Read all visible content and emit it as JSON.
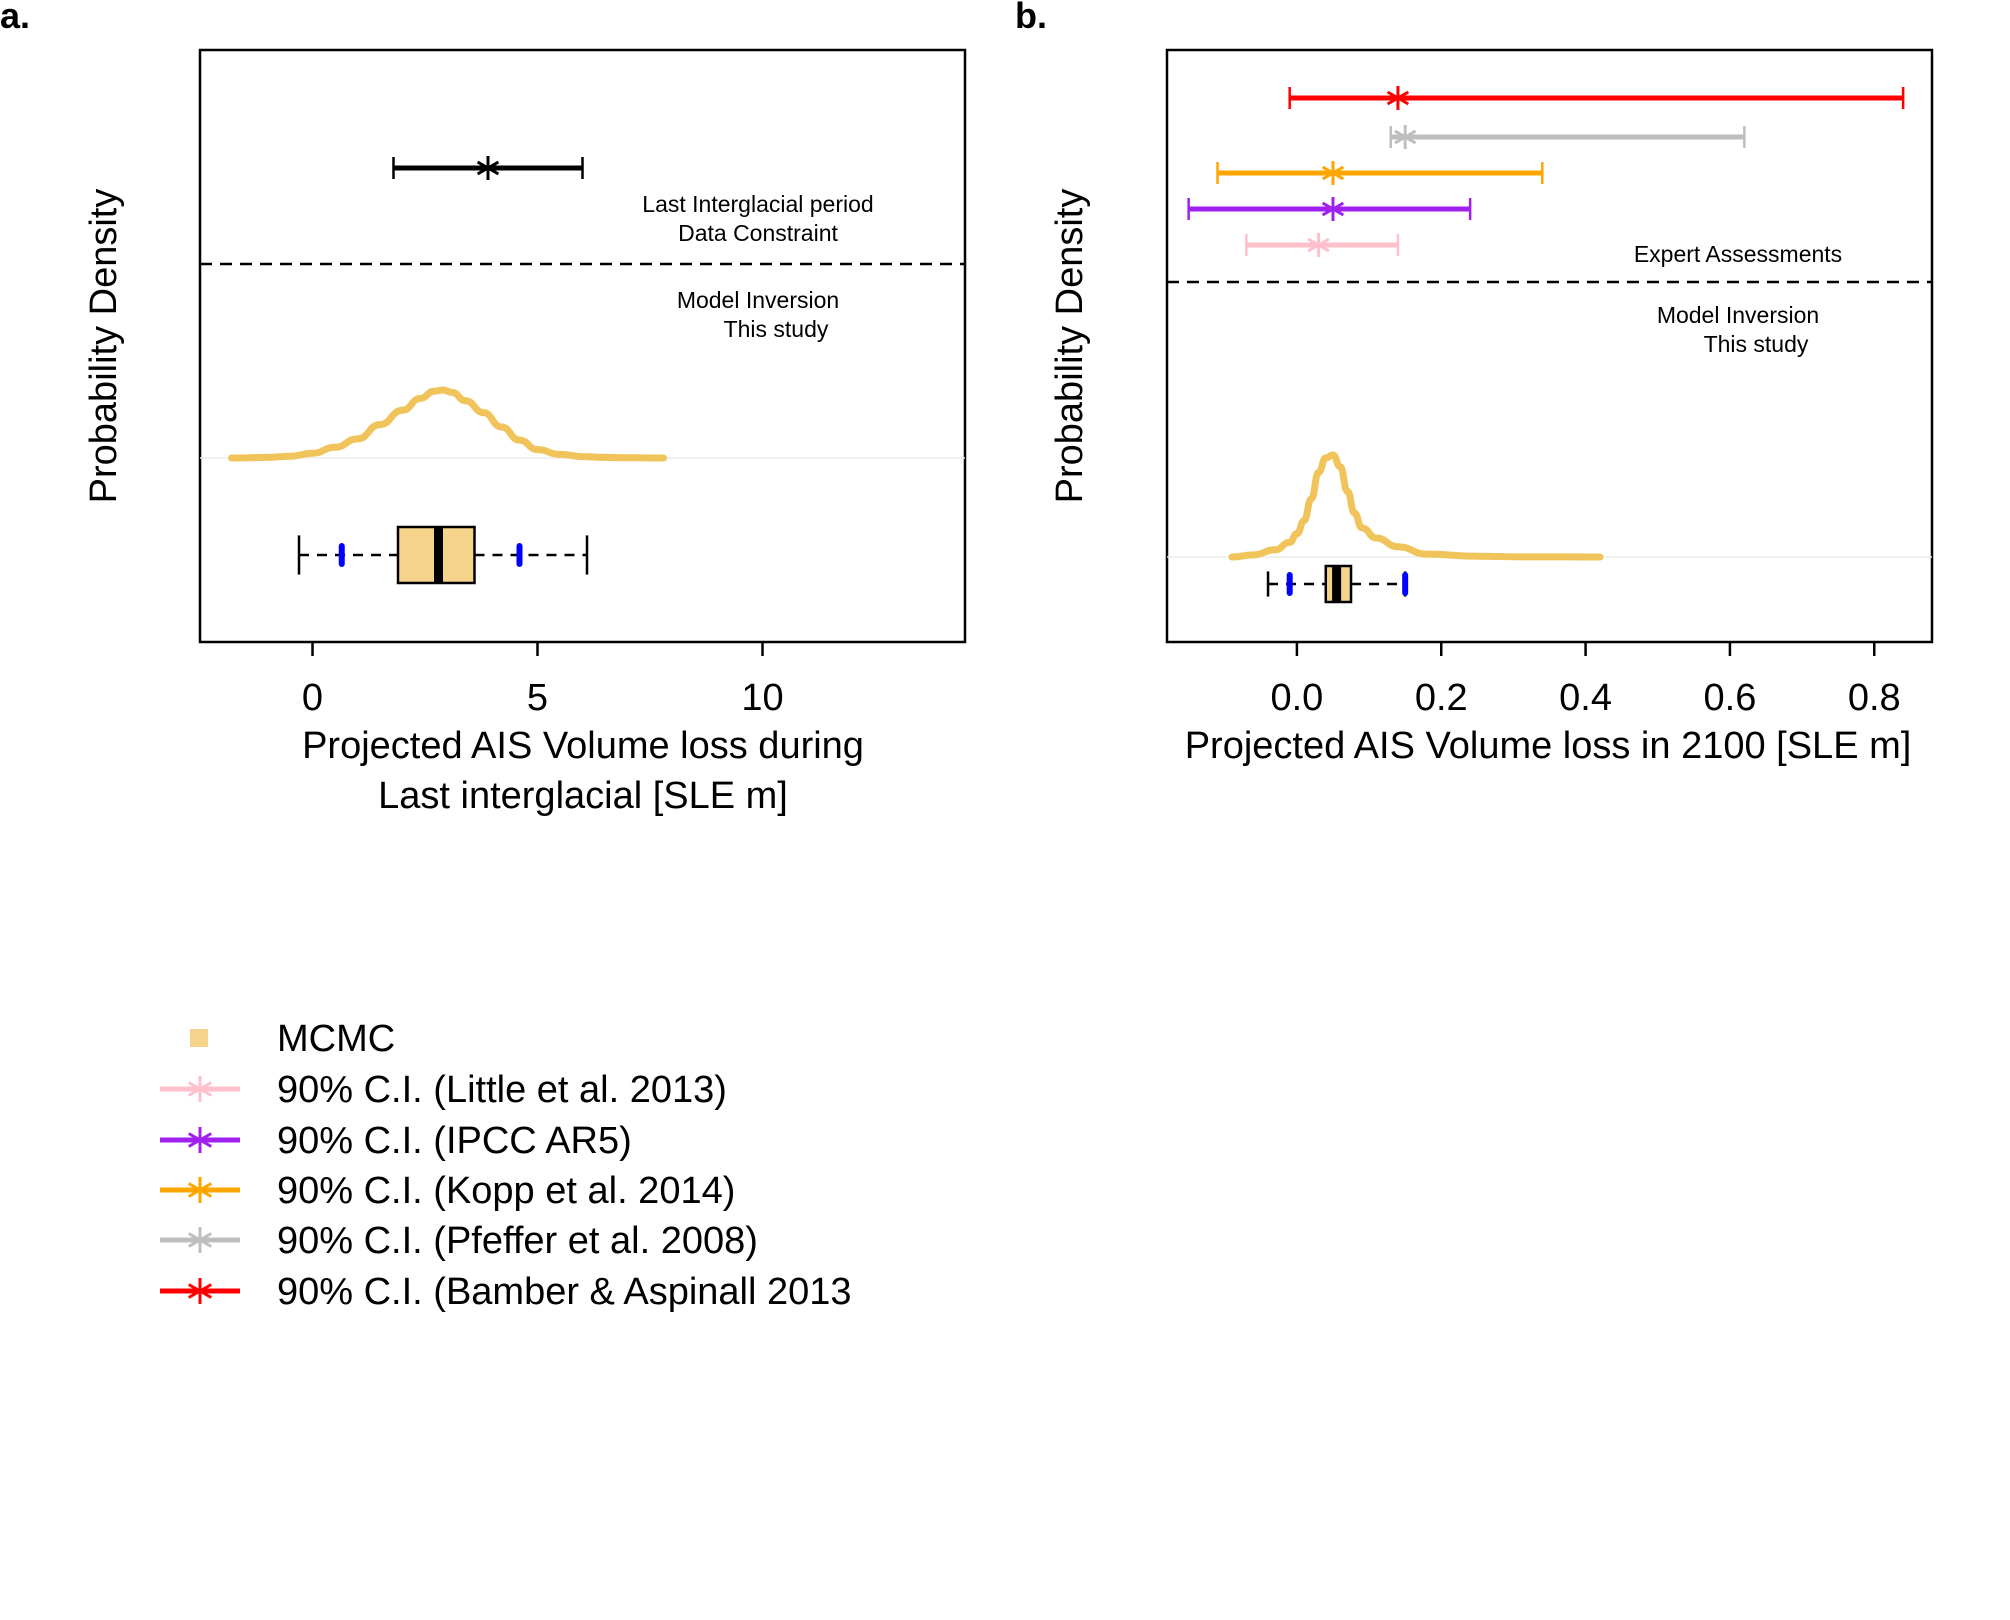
{
  "chart_data": [
    {
      "panel": "a.",
      "type": "density",
      "xlabel": [
        "Projected AIS Volume loss during",
        "Last interglacial [SLE m]"
      ],
      "ylabel": "Probability Density",
      "xlim": [
        -2.5,
        14.5
      ],
      "xticks": [
        0,
        5,
        10
      ],
      "tick_labels": [
        "0",
        "5",
        "10"
      ],
      "annotations": {
        "upper": [
          "Last Interglacial period",
          "Data Constraint"
        ],
        "lower": [
          "Model Inversion",
          "This study"
        ]
      },
      "constraint": {
        "low": 1.8,
        "point": 3.9,
        "high": 6.0,
        "color": "#000000"
      },
      "density": {
        "x": [
          -1.8,
          -1.0,
          -0.5,
          0.0,
          0.5,
          1.0,
          1.5,
          2.0,
          2.4,
          2.7,
          2.9,
          3.1,
          3.4,
          3.8,
          4.2,
          4.6,
          5.0,
          5.5,
          6.0,
          6.5,
          7.0,
          7.8
        ],
        "y": [
          0.0,
          0.005,
          0.015,
          0.04,
          0.09,
          0.16,
          0.28,
          0.4,
          0.5,
          0.56,
          0.57,
          0.55,
          0.48,
          0.38,
          0.26,
          0.15,
          0.07,
          0.03,
          0.012,
          0.005,
          0.002,
          0.0
        ],
        "color": "#F0C45A"
      },
      "boxplot": {
        "whisker_low": -0.3,
        "p5": 0.65,
        "q1": 1.9,
        "median": 2.8,
        "q3": 3.6,
        "p95": 4.6,
        "whisker_high": 6.1,
        "box_color": "#F5D38A",
        "marker_color": "#0000FF"
      }
    },
    {
      "panel": "b.",
      "type": "density",
      "xlabel": [
        "Projected AIS Volume loss in 2100 [SLE m]"
      ],
      "ylabel": "Probability Density",
      "xlim": [
        -0.18,
        0.88
      ],
      "xticks": [
        0.0,
        0.2,
        0.4,
        0.6,
        0.8
      ],
      "tick_labels": [
        "0.0",
        "0.2",
        "0.4",
        "0.6",
        "0.8"
      ],
      "annotations": {
        "upper": [
          "Expert Assessments"
        ],
        "lower": [
          "Model Inversion",
          "This study"
        ]
      },
      "intervals": [
        {
          "name": "Bamber & Aspinall 2013",
          "low": -0.01,
          "point": 0.14,
          "high": 0.84,
          "color": "#FF0000"
        },
        {
          "name": "Pfeffer et al. 2008",
          "low": 0.13,
          "point": 0.15,
          "high": 0.62,
          "color": "#BEBEBE"
        },
        {
          "name": "Kopp et al. 2014",
          "low": -0.11,
          "point": 0.05,
          "high": 0.34,
          "color": "#FFA500"
        },
        {
          "name": "IPCC AR5",
          "low": -0.15,
          "point": 0.05,
          "high": 0.24,
          "color": "#A020F0"
        },
        {
          "name": "Little et al. 2013",
          "low": -0.07,
          "point": 0.03,
          "high": 0.14,
          "color": "#FFC0CB"
        }
      ],
      "density": {
        "x": [
          -0.09,
          -0.06,
          -0.03,
          -0.01,
          0.0,
          0.01,
          0.02,
          0.03,
          0.04,
          0.05,
          0.06,
          0.07,
          0.08,
          0.09,
          0.11,
          0.14,
          0.18,
          0.25,
          0.32,
          0.42
        ],
        "y": [
          0.0,
          0.015,
          0.05,
          0.1,
          0.16,
          0.25,
          0.4,
          0.58,
          0.68,
          0.7,
          0.62,
          0.45,
          0.3,
          0.2,
          0.13,
          0.07,
          0.02,
          0.005,
          0.001,
          0.0
        ],
        "color": "#F0C45A"
      },
      "boxplot": {
        "whisker_low": -0.04,
        "p5": -0.01,
        "q1": 0.04,
        "median": 0.055,
        "q3": 0.075,
        "p95": 0.15,
        "whisker_high": 0.15,
        "box_color": "#F5D38A",
        "marker_color": "#0000FF"
      }
    }
  ],
  "legend": {
    "items": [
      {
        "label": "MCMC",
        "kind": "square",
        "color": "#F5D38A"
      },
      {
        "label": "90% C.I. (Little et al. 2013)",
        "kind": "line-star",
        "color": "#FFC0CB"
      },
      {
        "label": "90% C.I. (IPCC AR5)",
        "kind": "line-star",
        "color": "#A020F0"
      },
      {
        "label": "90% C.I. (Kopp et al. 2014)",
        "kind": "line-star",
        "color": "#FFA500"
      },
      {
        "label": "90% C.I. (Pfeffer et al. 2008)",
        "kind": "line-star",
        "color": "#BEBEBE"
      },
      {
        "label": "90% C.I. (Bamber & Aspinall 2013",
        "kind": "line-star",
        "color": "#FF0000"
      }
    ]
  }
}
